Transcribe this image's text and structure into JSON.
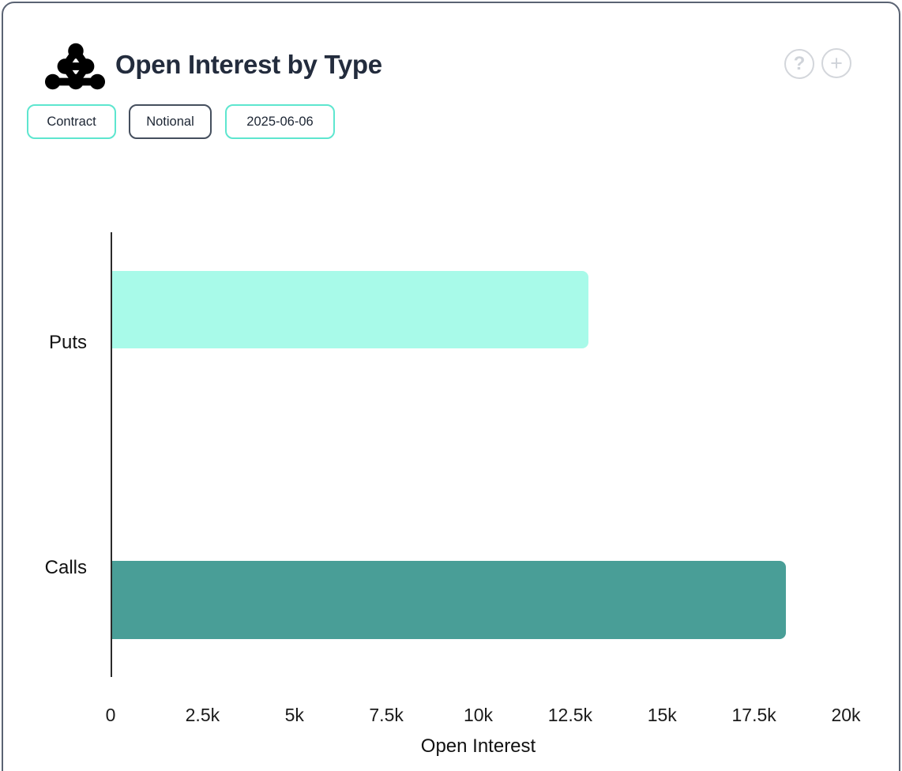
{
  "header": {
    "title": "Open Interest by Type",
    "logo_icon": "node-network-logo",
    "help_glyph": "?",
    "expand_glyph": "+"
  },
  "toolbar": {
    "buttons": [
      {
        "label": "Contract",
        "style": "teal"
      },
      {
        "label": "Notional",
        "style": "dark"
      },
      {
        "label": "2025-06-06",
        "style": "teal"
      }
    ]
  },
  "colors": {
    "card_border": "#5a6373",
    "title_text": "#232c3d",
    "teal_pill_border": "#5ee6cf",
    "dark_pill_border": "#454f5e",
    "icon_gray": "#d3d6db",
    "puts_bar": "#a8fae9",
    "calls_bar": "#499e97",
    "axis_line": "#2b2b2b",
    "chart_text": "#111111"
  },
  "chart_data": {
    "type": "bar",
    "orientation": "horizontal",
    "title": "Open Interest by Type",
    "categories": [
      "Puts",
      "Calls"
    ],
    "values": [
      12950,
      18330
    ],
    "bar_colors": [
      "#a8fae9",
      "#499e97"
    ],
    "xlabel": "Open Interest",
    "ylabel": "",
    "xlim": [
      0,
      20000
    ],
    "xticks": [
      0,
      2500,
      5000,
      7500,
      10000,
      12500,
      15000,
      17500,
      20000
    ],
    "xtick_labels": [
      "0",
      "2.5k",
      "5k",
      "7.5k",
      "10k",
      "12.5k",
      "15k",
      "17.5k",
      "20k"
    ],
    "grid": false,
    "legend": false
  }
}
